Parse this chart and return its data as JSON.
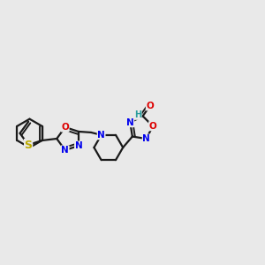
{
  "bg": "#e9e9e9",
  "bond_color": "#1a1a1a",
  "lw": 1.6,
  "fs": 7.5,
  "figsize": [
    3.0,
    3.0
  ],
  "dpi": 100,
  "colors": {
    "N": "#0000ee",
    "O": "#dd0000",
    "S": "#bbaa00",
    "H": "#2a9d9d",
    "C": "#1a1a1a"
  }
}
